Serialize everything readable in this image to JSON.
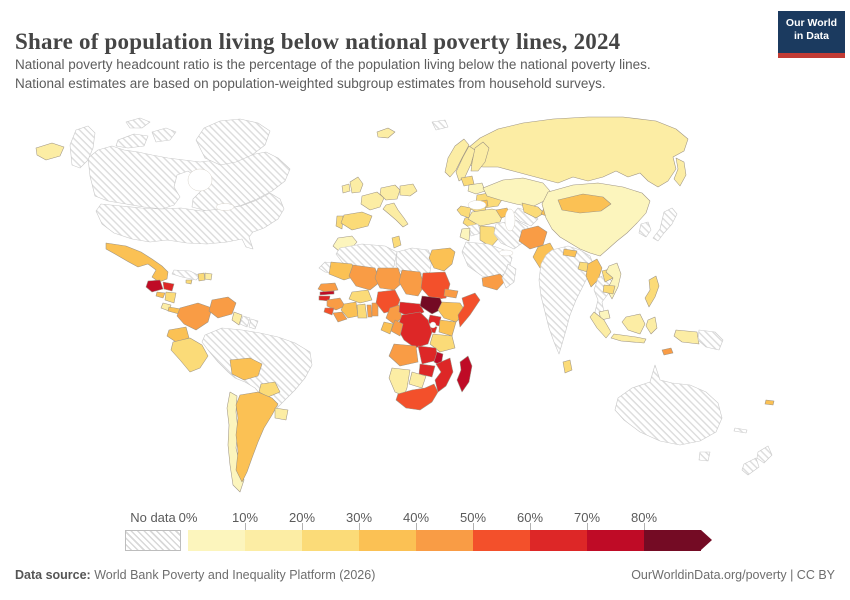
{
  "header": {
    "title": "Share of population living below national poverty lines, 2024",
    "subtitle_line1": "National poverty headcount ratio is the percentage of the population living below the national poverty lines.",
    "subtitle_line2": "National estimates are based on population-weighted subgroup estimates from household surveys.",
    "logo": {
      "line1": "Our World",
      "line2": "in Data",
      "bg_color": "#1b3a5f",
      "accent_color": "#c23b34"
    }
  },
  "legend": {
    "no_data_label": "No data",
    "tick_labels": [
      "0%",
      "10%",
      "20%",
      "30%",
      "40%",
      "50%",
      "60%",
      "70%",
      "80%"
    ],
    "bin_colors": [
      "#fcf5bd",
      "#fceda4",
      "#fbdb78",
      "#fbc154",
      "#f99c45",
      "#f3502b",
      "#dd2727",
      "#bf0b26",
      "#740b24"
    ]
  },
  "footer": {
    "source_label": "Data source:",
    "source_text": " World Bank Poverty and Inequality Platform (2026)",
    "right_text": "OurWorldinData.org/poverty | CC BY"
  },
  "chart_data": {
    "type": "heatmap",
    "subtype": "world-choropleth",
    "title": "Share of population living below national poverty lines, 2024",
    "unit": "share of population (%)",
    "legend_bins": [
      {
        "range": "0-10%",
        "color": "#fcf5bd"
      },
      {
        "range": "10-20%",
        "color": "#fceda4"
      },
      {
        "range": "20-30%",
        "color": "#fbdb78"
      },
      {
        "range": "30-40%",
        "color": "#fbc154"
      },
      {
        "range": "40-50%",
        "color": "#f99c45"
      },
      {
        "range": "50-60%",
        "color": "#f3502b"
      },
      {
        "range": "60-70%",
        "color": "#dd2727"
      },
      {
        "range": "70-80%",
        "color": "#bf0b26"
      },
      {
        "range": "80%+",
        "color": "#740b24"
      },
      {
        "range": "No data",
        "color": "hatched"
      }
    ],
    "regions": [
      {
        "id": "russia",
        "name": "Russia",
        "value": "10-20%",
        "bin": 1
      },
      {
        "id": "canada",
        "name": "Canada",
        "value": "No data",
        "bin": null
      },
      {
        "id": "usa",
        "name": "United States",
        "value": "No data",
        "bin": null
      },
      {
        "id": "greenland",
        "name": "Greenland",
        "value": "No data",
        "bin": null
      },
      {
        "id": "mexico",
        "name": "Mexico",
        "value": "30-40%",
        "bin": 3
      },
      {
        "id": "guatemala",
        "name": "Guatemala",
        "value": "70-80%",
        "bin": 7
      },
      {
        "id": "honduras",
        "name": "Honduras",
        "value": "60-70%",
        "bin": 6
      },
      {
        "id": "el-salvador",
        "name": "El Salvador",
        "value": "30-40%",
        "bin": 3
      },
      {
        "id": "nicaragua",
        "name": "Nicaragua",
        "value": "20-30%",
        "bin": 2
      },
      {
        "id": "costa-rica",
        "name": "Costa Rica",
        "value": "10-20%",
        "bin": 1
      },
      {
        "id": "panama",
        "name": "Panama",
        "value": "30-40%",
        "bin": 3
      },
      {
        "id": "cuba",
        "name": "Cuba",
        "value": "No data",
        "bin": null
      },
      {
        "id": "jamaica",
        "name": "Jamaica",
        "value": "20-30%",
        "bin": 2
      },
      {
        "id": "haiti",
        "name": "Haiti",
        "value": "20-30%",
        "bin": 2
      },
      {
        "id": "dominican-republic",
        "name": "Dominican Republic",
        "value": "10-20%",
        "bin": 1
      },
      {
        "id": "brazil",
        "name": "Brazil",
        "value": "No data",
        "bin": null
      },
      {
        "id": "colombia",
        "name": "Colombia",
        "value": "40-50%",
        "bin": 4
      },
      {
        "id": "venezuela",
        "name": "Venezuela",
        "value": "40-50%",
        "bin": 4
      },
      {
        "id": "guyana",
        "name": "Guyana",
        "value": "10-20%",
        "bin": 1
      },
      {
        "id": "suriname",
        "name": "Suriname",
        "value": "No data",
        "bin": null
      },
      {
        "id": "french-guiana",
        "name": "French Guiana",
        "value": "No data",
        "bin": null
      },
      {
        "id": "ecuador",
        "name": "Ecuador",
        "value": "30-40%",
        "bin": 3
      },
      {
        "id": "peru",
        "name": "Peru",
        "value": "20-30%",
        "bin": 2
      },
      {
        "id": "bolivia",
        "name": "Bolivia",
        "value": "30-40%",
        "bin": 3
      },
      {
        "id": "paraguay",
        "name": "Paraguay",
        "value": "20-30%",
        "bin": 2
      },
      {
        "id": "chile",
        "name": "Chile",
        "value": "0-10%",
        "bin": 0
      },
      {
        "id": "argentina",
        "name": "Argentina",
        "value": "30-40%",
        "bin": 3
      },
      {
        "id": "uruguay",
        "name": "Uruguay",
        "value": "10-20%",
        "bin": 1
      },
      {
        "id": "iceland",
        "name": "Iceland",
        "value": "10-20%",
        "bin": 1
      },
      {
        "id": "svalbard",
        "name": "Svalbard",
        "value": "No data",
        "bin": null
      },
      {
        "id": "norway",
        "name": "Norway",
        "value": "10-20%",
        "bin": 1
      },
      {
        "id": "sweden",
        "name": "Sweden",
        "value": "10-20%",
        "bin": 1
      },
      {
        "id": "finland",
        "name": "Finland",
        "value": "10-20%",
        "bin": 1
      },
      {
        "id": "uk",
        "name": "United Kingdom",
        "value": "10-20%",
        "bin": 1
      },
      {
        "id": "ireland",
        "name": "Ireland",
        "value": "10-20%",
        "bin": 1
      },
      {
        "id": "france",
        "name": "France",
        "value": "10-20%",
        "bin": 1
      },
      {
        "id": "portugal",
        "name": "Portugal",
        "value": "20-30%",
        "bin": 2
      },
      {
        "id": "spain",
        "name": "Spain",
        "value": "20-30%",
        "bin": 2
      },
      {
        "id": "germany",
        "name": "Germany",
        "value": "10-20%",
        "bin": 1
      },
      {
        "id": "poland",
        "name": "Poland",
        "value": "10-20%",
        "bin": 1
      },
      {
        "id": "baltic-states",
        "name": "Baltic states",
        "value": "20-30%",
        "bin": 2
      },
      {
        "id": "belarus",
        "name": "Belarus",
        "value": "0-10%",
        "bin": 0
      },
      {
        "id": "ukraine",
        "name": "Ukraine",
        "value": "20-30%",
        "bin": 2
      },
      {
        "id": "romania",
        "name": "Romania",
        "value": "20-30%",
        "bin": 2
      },
      {
        "id": "moldova",
        "name": "Moldova",
        "value": "30-40%",
        "bin": 3
      },
      {
        "id": "balkans",
        "name": "Balkans",
        "value": "20-30%",
        "bin": 2
      },
      {
        "id": "italy",
        "name": "Italy",
        "value": "10-20%",
        "bin": 1
      },
      {
        "id": "greece",
        "name": "Greece",
        "value": "20-30%",
        "bin": 2
      },
      {
        "id": "turkey",
        "name": "Turkey",
        "value": "10-20%",
        "bin": 1
      },
      {
        "id": "caucasus",
        "name": "Caucasus",
        "value": "30-40%",
        "bin": 3
      },
      {
        "id": "kazakhstan",
        "name": "Kazakhstan",
        "value": "0-10%",
        "bin": 0
      },
      {
        "id": "turkmenistan",
        "name": "Turkmenistan",
        "value": "No data",
        "bin": null
      },
      {
        "id": "uzbekistan",
        "name": "Uzbekistan",
        "value": "20-30%",
        "bin": 2
      },
      {
        "id": "kyrgyzstan-tajikistan",
        "name": "Kyrgyzstan & Tajikistan",
        "value": "30-40%",
        "bin": 3
      },
      {
        "id": "syria",
        "name": "Syria",
        "value": "No data",
        "bin": null
      },
      {
        "id": "jordan",
        "name": "Jordan",
        "value": "0-10%",
        "bin": 0
      },
      {
        "id": "iraq",
        "name": "Iraq",
        "value": "20-30%",
        "bin": 2
      },
      {
        "id": "iran",
        "name": "Iran",
        "value": "No data",
        "bin": null
      },
      {
        "id": "saudi-arabia",
        "name": "Saudi Arabia",
        "value": "No data",
        "bin": null
      },
      {
        "id": "yemen",
        "name": "Yemen",
        "value": "40-50%",
        "bin": 4
      },
      {
        "id": "oman",
        "name": "Oman",
        "value": "No data",
        "bin": null
      },
      {
        "id": "afghanistan",
        "name": "Afghanistan",
        "value": "40-50%",
        "bin": 4
      },
      {
        "id": "pakistan",
        "name": "Pakistan",
        "value": "30-40%",
        "bin": 3
      },
      {
        "id": "india",
        "name": "India",
        "value": "No data",
        "bin": null
      },
      {
        "id": "nepal",
        "name": "Nepal",
        "value": "30-40%",
        "bin": 3
      },
      {
        "id": "bangladesh",
        "name": "Bangladesh",
        "value": "20-30%",
        "bin": 2
      },
      {
        "id": "sri-lanka",
        "name": "Sri Lanka",
        "value": "20-30%",
        "bin": 2
      },
      {
        "id": "china",
        "name": "China",
        "value": "0-10%",
        "bin": 0
      },
      {
        "id": "mongolia",
        "name": "Mongolia",
        "value": "30-40%",
        "bin": 3
      },
      {
        "id": "myanmar",
        "name": "Myanmar",
        "value": "30-40%",
        "bin": 3
      },
      {
        "id": "thailand",
        "name": "Thailand",
        "value": "No data",
        "bin": null
      },
      {
        "id": "laos",
        "name": "Laos",
        "value": "20-30%",
        "bin": 2
      },
      {
        "id": "vietnam",
        "name": "Vietnam",
        "value": "0-10%",
        "bin": 0
      },
      {
        "id": "cambodia",
        "name": "Cambodia",
        "value": "20-30%",
        "bin": 2
      },
      {
        "id": "malaysia",
        "name": "Malaysia",
        "value": "0-10%",
        "bin": 0
      },
      {
        "id": "indonesia",
        "name": "Indonesia",
        "value": "10-20%",
        "bin": 1
      },
      {
        "id": "philippines",
        "name": "Philippines",
        "value": "20-30%",
        "bin": 2
      },
      {
        "id": "east-timor",
        "name": "Timor-Leste",
        "value": "40-50%",
        "bin": 4
      },
      {
        "id": "papua-new-guinea",
        "name": "Papua New Guinea",
        "value": "No data",
        "bin": null
      },
      {
        "id": "japan",
        "name": "Japan",
        "value": "No data",
        "bin": null
      },
      {
        "id": "korea",
        "name": "South Korea",
        "value": "No data",
        "bin": null
      },
      {
        "id": "australia",
        "name": "Australia",
        "value": "No data",
        "bin": null
      },
      {
        "id": "new-zealand",
        "name": "New Zealand",
        "value": "No data",
        "bin": null
      },
      {
        "id": "new-caledonia",
        "name": "New Caledonia",
        "value": "No data",
        "bin": null
      },
      {
        "id": "fiji",
        "name": "Fiji",
        "value": "30-40%",
        "bin": 3
      },
      {
        "id": "morocco",
        "name": "Morocco",
        "value": "0-10%",
        "bin": 0
      },
      {
        "id": "western-sahara",
        "name": "Western Sahara",
        "value": "No data",
        "bin": null
      },
      {
        "id": "algeria",
        "name": "Algeria",
        "value": "No data",
        "bin": null
      },
      {
        "id": "tunisia",
        "name": "Tunisia",
        "value": "20-30%",
        "bin": 2
      },
      {
        "id": "libya",
        "name": "Libya",
        "value": "No data",
        "bin": null
      },
      {
        "id": "egypt",
        "name": "Egypt",
        "value": "30-40%",
        "bin": 3
      },
      {
        "id": "mauritania",
        "name": "Mauritania",
        "value": "30-40%",
        "bin": 3
      },
      {
        "id": "mali",
        "name": "Mali",
        "value": "40-50%",
        "bin": 4
      },
      {
        "id": "niger",
        "name": "Niger",
        "value": "40-50%",
        "bin": 4
      },
      {
        "id": "chad",
        "name": "Chad",
        "value": "40-50%",
        "bin": 4
      },
      {
        "id": "sudan",
        "name": "Sudan",
        "value": "50-60%",
        "bin": 5
      },
      {
        "id": "eritrea",
        "name": "Eritrea",
        "value": "40-50%",
        "bin": 4
      },
      {
        "id": "senegal",
        "name": "Senegal",
        "value": "40-50%",
        "bin": 4
      },
      {
        "id": "gambia",
        "name": "Gambia",
        "value": "70-80%",
        "bin": 7
      },
      {
        "id": "guinea-bissau",
        "name": "Guinea-Bissau",
        "value": "60-70%",
        "bin": 6
      },
      {
        "id": "guinea",
        "name": "Guinea",
        "value": "40-50%",
        "bin": 4
      },
      {
        "id": "sierra-leone",
        "name": "Sierra Leone",
        "value": "50-60%",
        "bin": 5
      },
      {
        "id": "liberia",
        "name": "Liberia",
        "value": "40-50%",
        "bin": 4
      },
      {
        "id": "cote-divoire",
        "name": "Côte d'Ivoire",
        "value": "30-40%",
        "bin": 3
      },
      {
        "id": "ghana",
        "name": "Ghana",
        "value": "20-30%",
        "bin": 2
      },
      {
        "id": "togo",
        "name": "Togo",
        "value": "40-50%",
        "bin": 4
      },
      {
        "id": "benin",
        "name": "Benin",
        "value": "40-50%",
        "bin": 4
      },
      {
        "id": "burkina-faso",
        "name": "Burkina Faso",
        "value": "20-30%",
        "bin": 2
      },
      {
        "id": "nigeria",
        "name": "Nigeria",
        "value": "50-60%",
        "bin": 5
      },
      {
        "id": "cameroon",
        "name": "Cameroon",
        "value": "40-50%",
        "bin": 4
      },
      {
        "id": "car",
        "name": "Central African Republic",
        "value": "60-70%",
        "bin": 6
      },
      {
        "id": "south-sudan",
        "name": "South Sudan",
        "value": "80%+",
        "bin": 8
      },
      {
        "id": "ethiopia",
        "name": "Ethiopia",
        "value": "30-40%",
        "bin": 3
      },
      {
        "id": "somalia",
        "name": "Somalia",
        "value": "50-60%",
        "bin": 5
      },
      {
        "id": "uganda",
        "name": "Uganda",
        "value": "60-70%",
        "bin": 6
      },
      {
        "id": "kenya",
        "name": "Kenya",
        "value": "30-40%",
        "bin": 3
      },
      {
        "id": "rwanda-burundi",
        "name": "Rwanda & Burundi",
        "value": "60-70%",
        "bin": 6
      },
      {
        "id": "drc",
        "name": "Democratic Republic of Congo",
        "value": "60-70%",
        "bin": 6
      },
      {
        "id": "congo",
        "name": "Congo",
        "value": "40-50%",
        "bin": 4
      },
      {
        "id": "gabon",
        "name": "Gabon",
        "value": "30-40%",
        "bin": 3
      },
      {
        "id": "tanzania",
        "name": "Tanzania",
        "value": "20-30%",
        "bin": 2
      },
      {
        "id": "angola",
        "name": "Angola",
        "value": "40-50%",
        "bin": 4
      },
      {
        "id": "zambia",
        "name": "Zambia",
        "value": "60-70%",
        "bin": 6
      },
      {
        "id": "malawi",
        "name": "Malawi",
        "value": "70-80%",
        "bin": 7
      },
      {
        "id": "mozambique",
        "name": "Mozambique",
        "value": "60-70%",
        "bin": 6
      },
      {
        "id": "zimbabwe",
        "name": "Zimbabwe",
        "value": "60-70%",
        "bin": 6
      },
      {
        "id": "botswana",
        "name": "Botswana",
        "value": "10-20%",
        "bin": 1
      },
      {
        "id": "namibia",
        "name": "Namibia",
        "value": "10-20%",
        "bin": 1
      },
      {
        "id": "south-africa",
        "name": "South Africa",
        "value": "50-60%",
        "bin": 5
      },
      {
        "id": "madagascar",
        "name": "Madagascar",
        "value": "70-80%",
        "bin": 7
      }
    ]
  }
}
